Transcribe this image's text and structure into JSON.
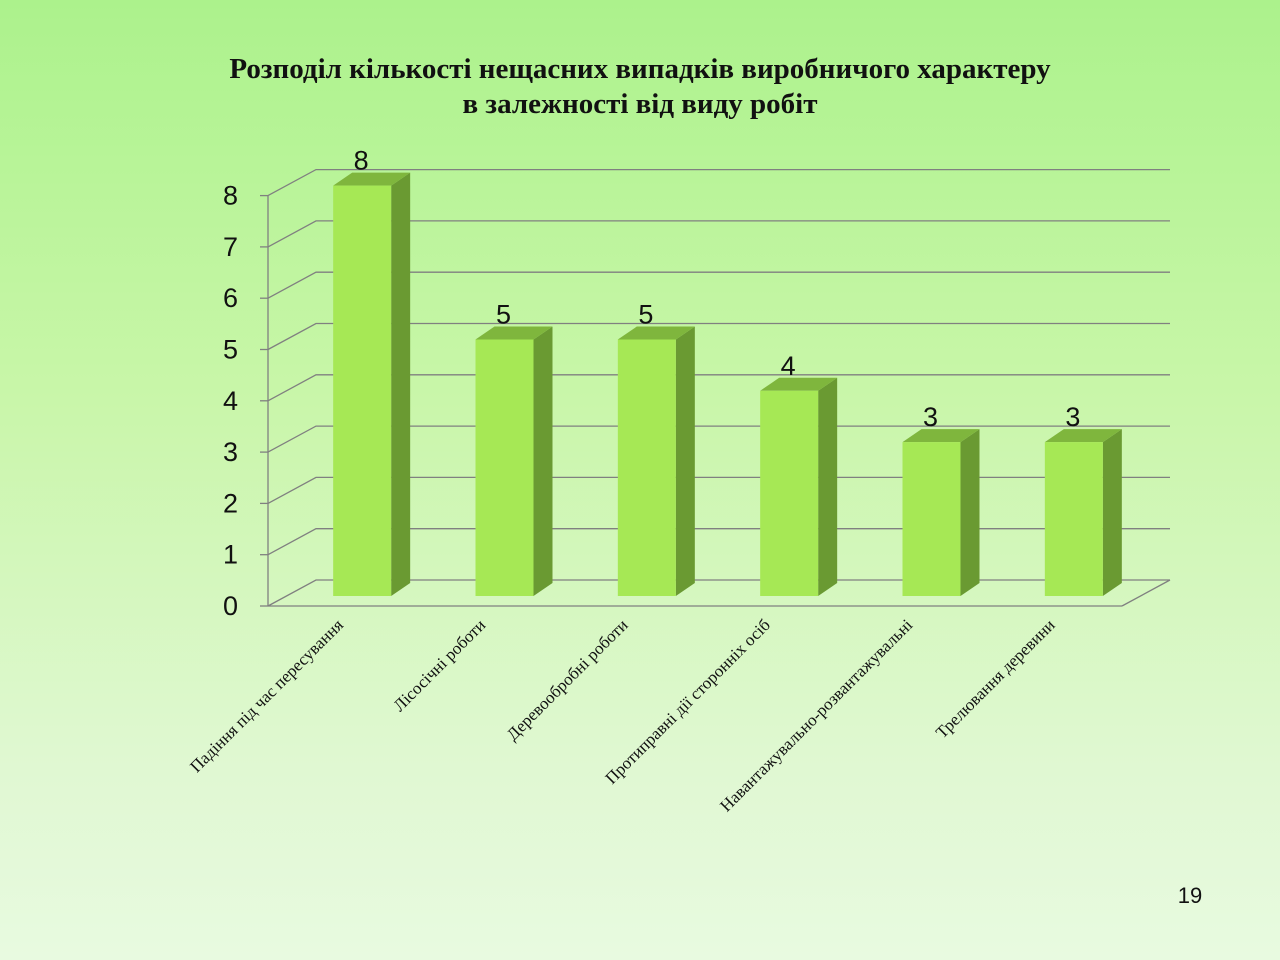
{
  "slide": {
    "title_line1": "Розподіл кількості нещасних випадків виробничого характеру",
    "title_line2": "в залежності від виду робіт",
    "page_number": "19"
  },
  "colors": {
    "bar_front": "#a6e855",
    "bar_side": "#6a9a32",
    "bar_top": "#7fb63d",
    "grid": "#808080"
  },
  "chart_data": {
    "type": "bar",
    "style": "3d-column",
    "title": "Розподіл кількості нещасних випадків виробничого характеру в залежності від виду робіт",
    "categories": [
      "Падіння під час пересування",
      "Лісосічні роботи",
      "Деревообробні роботи",
      "Протиправні дії сторонніх осіб",
      "Навантажувально-розвантажувальні",
      "Трелювання деревини"
    ],
    "values": [
      8,
      5,
      5,
      4,
      3,
      3
    ],
    "data_labels": [
      "8",
      "5",
      "5",
      "4",
      "3",
      "3"
    ],
    "yticks": [
      "0",
      "1",
      "2",
      "3",
      "4",
      "5",
      "6",
      "7",
      "8"
    ],
    "ylim": [
      0,
      8
    ],
    "grid": true,
    "legend": "none",
    "xlabel": "",
    "ylabel": ""
  }
}
